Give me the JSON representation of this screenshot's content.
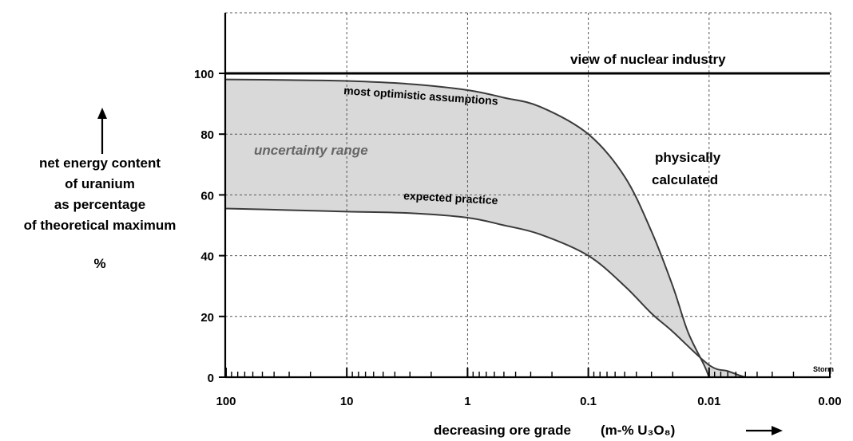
{
  "chart_data": {
    "type": "area",
    "x_scale": "log-reversed",
    "xlim": [
      100,
      0.001
    ],
    "ylim": [
      0,
      100
    ],
    "x_ticks": [
      {
        "value": 100,
        "label": "100"
      },
      {
        "value": 10,
        "label": "10"
      },
      {
        "value": 1,
        "label": "1"
      },
      {
        "value": 0.1,
        "label": "0.1"
      },
      {
        "value": 0.01,
        "label": "0.01"
      },
      {
        "value": 0.001,
        "label": "0.00"
      }
    ],
    "y_ticks": [
      0,
      20,
      40,
      60,
      80,
      100
    ],
    "grid": true,
    "xlabel": "decreasing ore grade",
    "xunit": "(m-% U₃O₈)",
    "ylabel": [
      "net energy content",
      "of uranium",
      "as percentage",
      "of theoretical maximum",
      "%"
    ],
    "series": [
      {
        "name": "view of nuclear industry",
        "x": [
          100,
          0.001
        ],
        "y": [
          100,
          100
        ]
      },
      {
        "name": "most optimistic assumptions",
        "x": [
          100,
          30,
          10,
          3,
          1,
          0.5,
          0.25,
          0.1,
          0.05,
          0.03,
          0.02,
          0.015,
          0.011,
          0.01
        ],
        "y": [
          98,
          97.8,
          97.5,
          96.5,
          94.5,
          92,
          89,
          80,
          66,
          48,
          30,
          15,
          4,
          0
        ]
      },
      {
        "name": "expected practice",
        "x": [
          100,
          30,
          10,
          3,
          1,
          0.5,
          0.25,
          0.1,
          0.05,
          0.03,
          0.02,
          0.01,
          0.007,
          0.0055,
          0.005
        ],
        "y": [
          55.5,
          55,
          54.5,
          54,
          52.5,
          50,
          47,
          40,
          30,
          21,
          15,
          4,
          2,
          0.5,
          0
        ]
      }
    ],
    "annotations": [
      "view of nuclear industry",
      "most optimistic assumptions",
      "uncertainty range",
      "physically calculated",
      "expected practice",
      "Storm"
    ],
    "shaded_region": "uncertainty range"
  },
  "colors": {
    "fill": "#d9d9d9",
    "grid": "#555555",
    "line": "#3a3a3a",
    "axis": "#000000",
    "muted_label": "#666666"
  }
}
